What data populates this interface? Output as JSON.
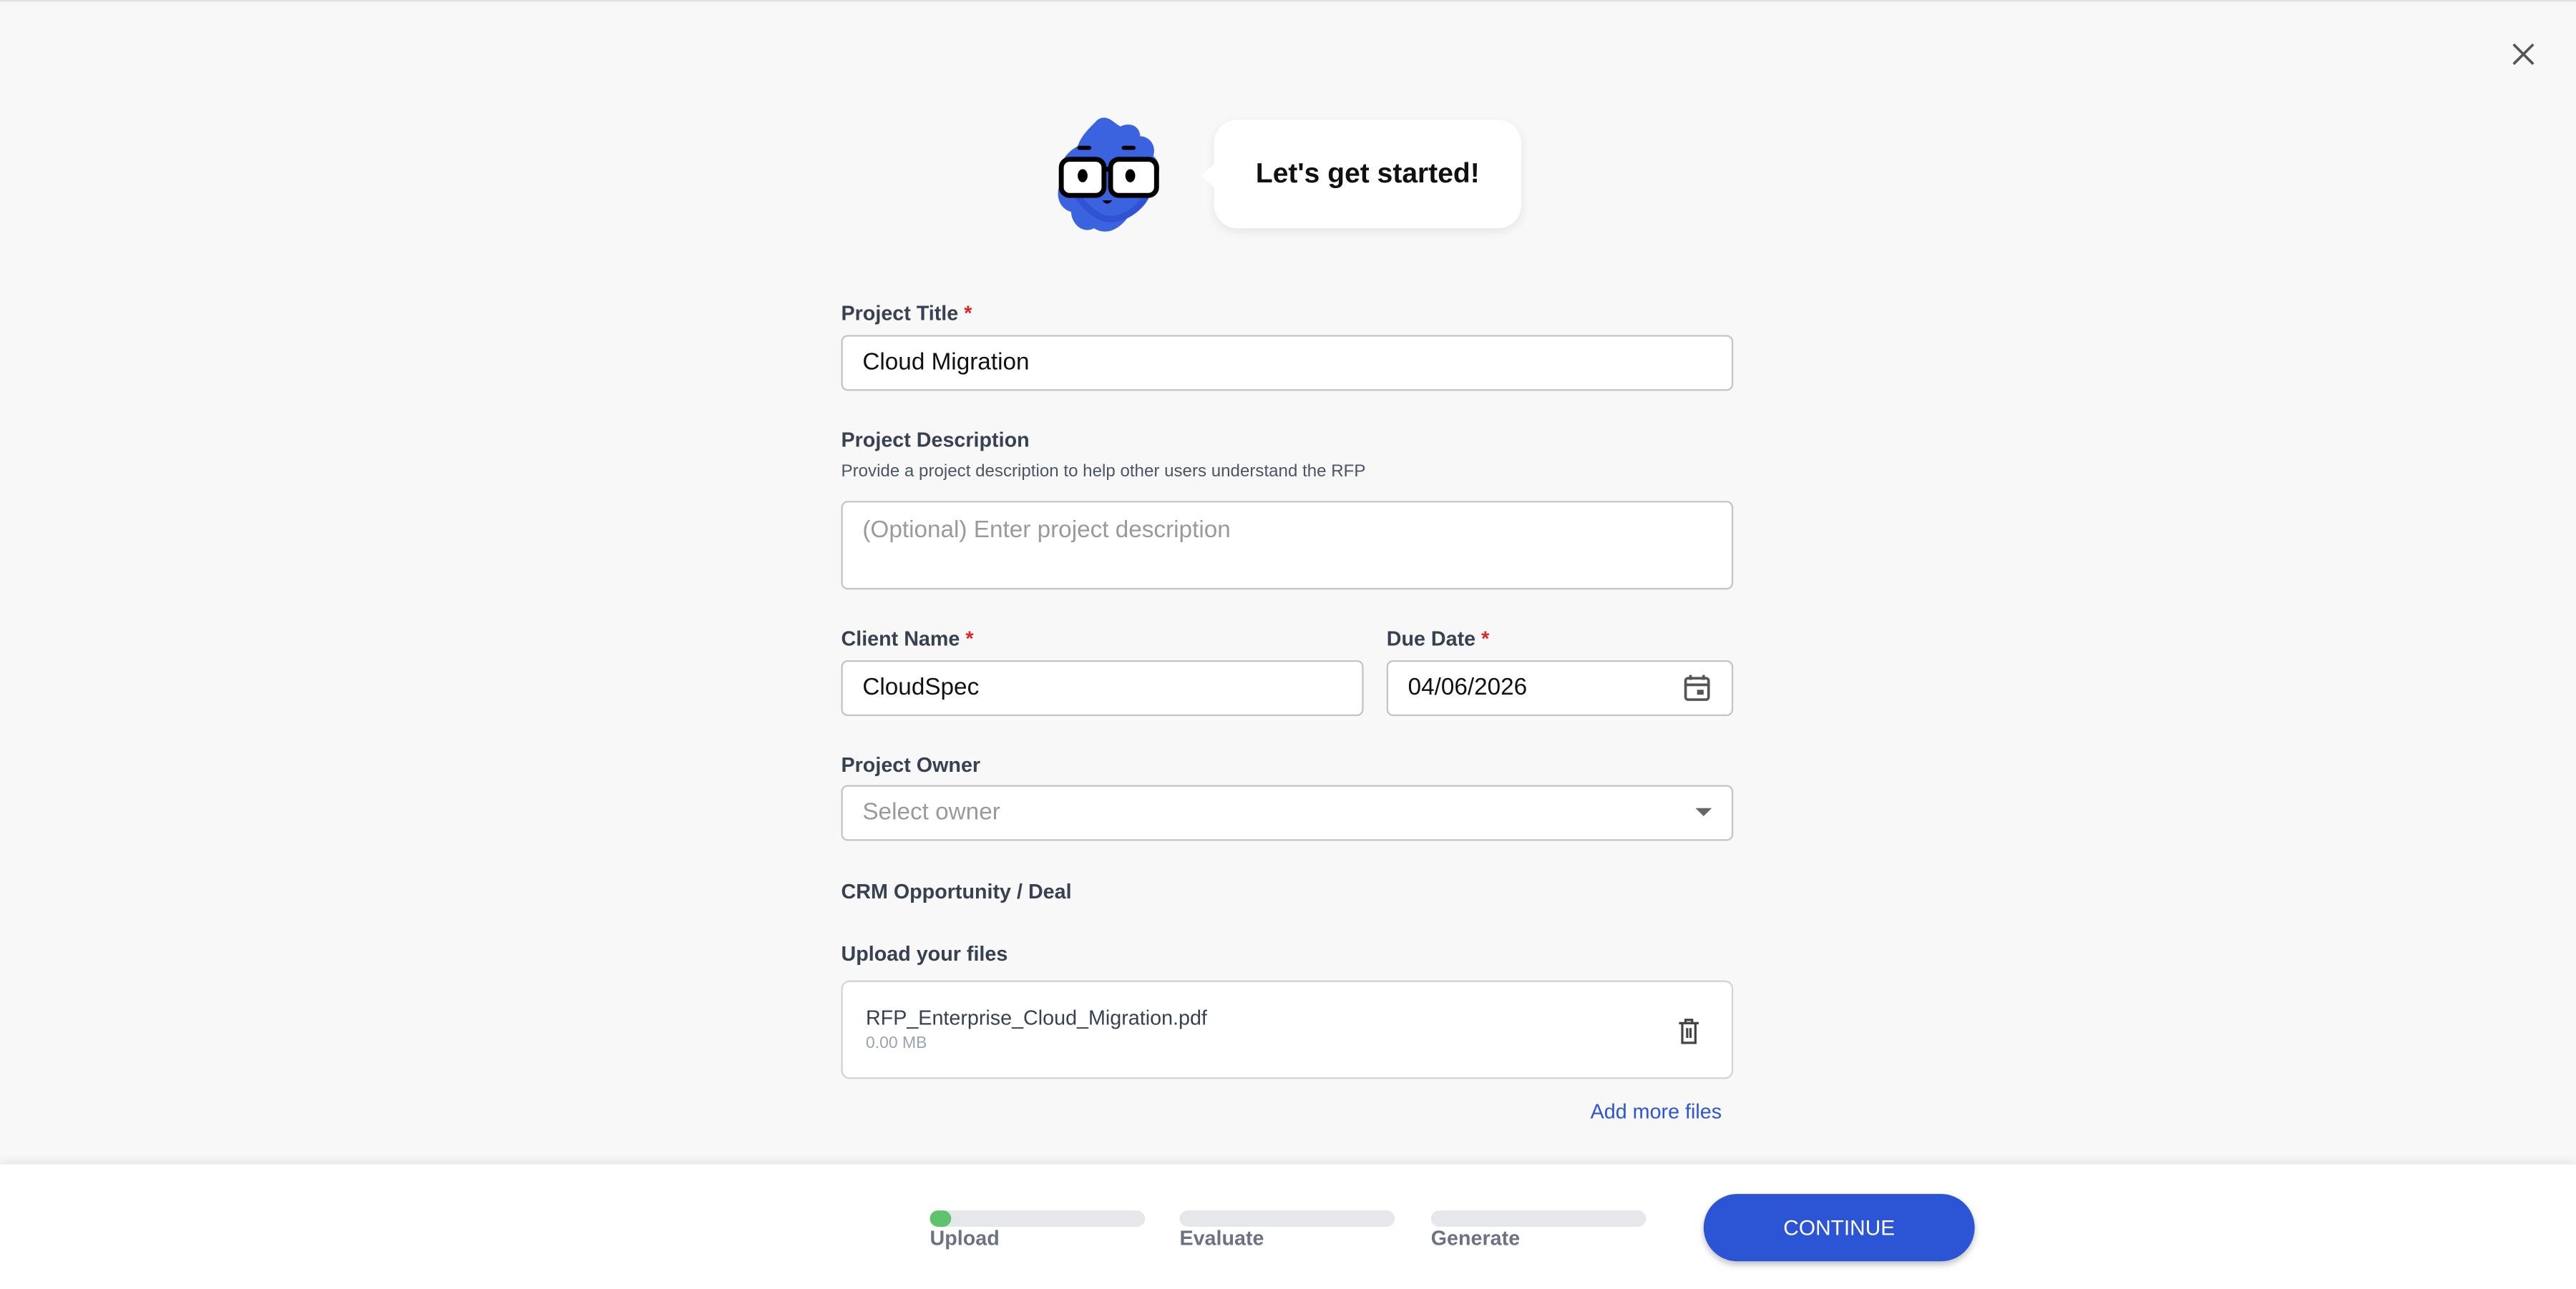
{
  "header": {
    "greeting": "Let's get started!",
    "close_icon": "close-icon",
    "mascot": "blue-fluffy-mascot-with-glasses"
  },
  "form": {
    "project_title": {
      "label": "Project Title",
      "required": "*",
      "value": "Cloud Migration"
    },
    "project_description": {
      "label": "Project Description",
      "help": "Provide a project description to help other users understand the RFP",
      "placeholder": "(Optional) Enter project description",
      "value": ""
    },
    "client_name": {
      "label": "Client Name",
      "required": "*",
      "value": "CloudSpec"
    },
    "due_date": {
      "label": "Due Date",
      "required": "*",
      "value": "04/06/2026",
      "icon": "calendar-icon"
    },
    "project_owner": {
      "label": "Project Owner",
      "placeholder": "Select owner"
    },
    "crm": {
      "label": "CRM Opportunity / Deal"
    },
    "upload": {
      "label": "Upload your files",
      "files": [
        {
          "name": "RFP_Enterprise_Cloud_Migration.pdf",
          "size": "0.00 MB"
        }
      ],
      "add_more": "Add more files"
    }
  },
  "footer": {
    "steps": [
      {
        "label": "Upload",
        "progress": 0.1
      },
      {
        "label": "Evaluate",
        "progress": 0
      },
      {
        "label": "Generate",
        "progress": 0
      }
    ],
    "continue_label": "CONTINUE"
  },
  "colors": {
    "accent": "#2b55d5",
    "progress": "#5ec46b",
    "required": "#dc2626"
  }
}
